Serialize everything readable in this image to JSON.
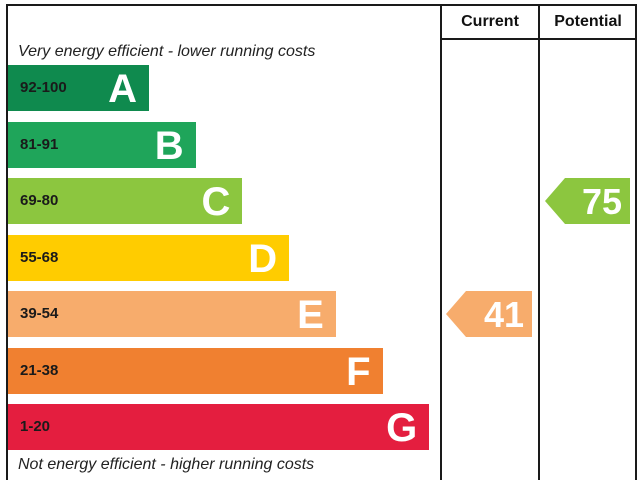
{
  "chart_data": {
    "type": "bar",
    "header": {
      "current": "Current",
      "potential": "Potential"
    },
    "top_caption": "Very energy efficient - lower running costs",
    "bottom_caption": "Not energy efficient - higher running costs",
    "bands": [
      {
        "letter": "A",
        "range": "92-100",
        "color": "#0f8a4e"
      },
      {
        "letter": "B",
        "range": "81-91",
        "color": "#1fa55a"
      },
      {
        "letter": "C",
        "range": "69-80",
        "color": "#8cc63f"
      },
      {
        "letter": "D",
        "range": "55-68",
        "color": "#ffcc00"
      },
      {
        "letter": "E",
        "range": "39-54",
        "color": "#f7ac6c"
      },
      {
        "letter": "F",
        "range": "21-38",
        "color": "#f08030"
      },
      {
        "letter": "G",
        "range": "1-20",
        "color": "#e41e3f"
      }
    ],
    "current": {
      "value": "41",
      "band": "E",
      "color": "#f7ac6c"
    },
    "potential": {
      "value": "75",
      "band": "C",
      "color": "#8cc63f"
    }
  }
}
